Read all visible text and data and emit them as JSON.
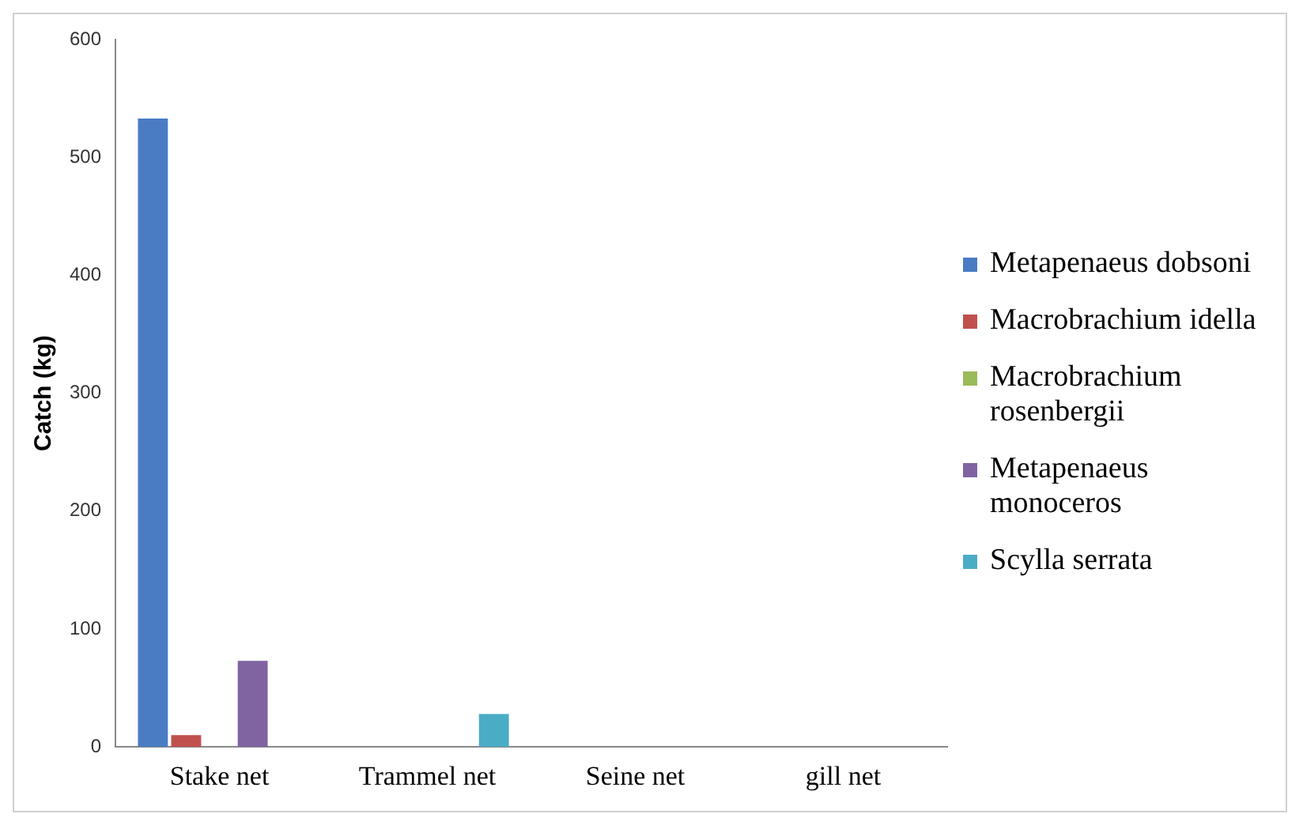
{
  "chart_data": {
    "type": "bar",
    "ylabel": "Catch (kg)",
    "categories": [
      "Stake net",
      "Trammel net",
      "Seine net",
      "gill net"
    ],
    "series": [
      {
        "name": "Metapenaeus dobsoni",
        "color": "#4a7cc4",
        "values": [
          533,
          0,
          0,
          0
        ]
      },
      {
        "name": "Macrobrachium idella",
        "color": "#c0504d",
        "values": [
          10,
          0,
          0,
          0
        ]
      },
      {
        "name": "Macrobrachium rosenbergii",
        "color": "#9bbb59",
        "values": [
          0,
          0,
          0,
          0
        ]
      },
      {
        "name": "Metapenaeus monoceros",
        "color": "#8064a2",
        "values": [
          73,
          0,
          0,
          0
        ]
      },
      {
        "name": "Scylla serrata",
        "color": "#4bacc6",
        "values": [
          0,
          28,
          0,
          0
        ]
      }
    ],
    "ylim": [
      0,
      600
    ],
    "yticks": [
      0,
      100,
      200,
      300,
      400,
      500,
      600
    ],
    "grid": false,
    "legend": "right"
  }
}
